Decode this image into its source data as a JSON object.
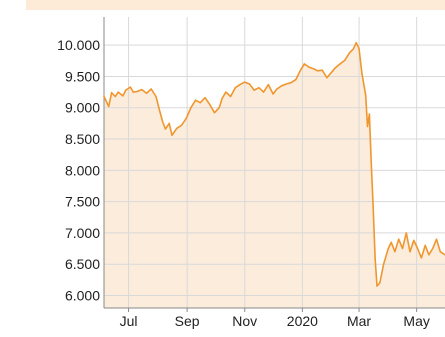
{
  "chart_data": {
    "type": "area",
    "title": "",
    "xlabel": "",
    "ylabel": "",
    "ylim": [
      5800,
      10450
    ],
    "grid": true,
    "colors": {
      "line": "#f0962e",
      "fill": "#fcecdc",
      "grid": "#d9d9d9",
      "axis": "#8a8a8a",
      "top_strip": "#fdebd8"
    },
    "y_ticks": [
      {
        "value": 6000,
        "label": "6.000"
      },
      {
        "value": 6500,
        "label": "6.500"
      },
      {
        "value": 7000,
        "label": "7.000"
      },
      {
        "value": 7500,
        "label": "7.500"
      },
      {
        "value": 8000,
        "label": "8.000"
      },
      {
        "value": 8500,
        "label": "8.500"
      },
      {
        "value": 9000,
        "label": "9.000"
      },
      {
        "value": 9500,
        "label": "9.500"
      },
      {
        "value": 10000,
        "label": "10.000"
      }
    ],
    "x_range": [
      "2019-06-05",
      "2020-05-31"
    ],
    "x_ticks": [
      {
        "date": "2019-07-01",
        "label": "Jul"
      },
      {
        "date": "2019-09-01",
        "label": "Sep"
      },
      {
        "date": "2019-11-01",
        "label": "Nov"
      },
      {
        "date": "2020-01-01",
        "label": "2020"
      },
      {
        "date": "2020-03-01",
        "label": "Mar"
      },
      {
        "date": "2020-05-01",
        "label": "May"
      }
    ],
    "series": [
      {
        "x": [
          "2019-06-05",
          "2019-06-10",
          "2019-06-13",
          "2019-06-17",
          "2019-06-20",
          "2019-06-25",
          "2019-06-28",
          "2019-07-03",
          "2019-07-06",
          "2019-07-10",
          "2019-07-15",
          "2019-07-20",
          "2019-07-25",
          "2019-07-30",
          "2019-08-03",
          "2019-08-06",
          "2019-08-09",
          "2019-08-13",
          "2019-08-16",
          "2019-08-21",
          "2019-08-26",
          "2019-08-31",
          "2019-09-05",
          "2019-09-10",
          "2019-09-15",
          "2019-09-20",
          "2019-09-25",
          "2019-09-30",
          "2019-10-05",
          "2019-10-08",
          "2019-10-12",
          "2019-10-17",
          "2019-10-22",
          "2019-10-27",
          "2019-11-01",
          "2019-11-06",
          "2019-11-11",
          "2019-11-16",
          "2019-11-21",
          "2019-11-26",
          "2019-12-01",
          "2019-12-05",
          "2019-12-10",
          "2019-12-15",
          "2019-12-20",
          "2019-12-25",
          "2019-12-30",
          "2020-01-03",
          "2020-01-08",
          "2020-01-13",
          "2020-01-17",
          "2020-01-22",
          "2020-01-27",
          "2020-01-31",
          "2020-02-05",
          "2020-02-10",
          "2020-02-15",
          "2020-02-20",
          "2020-02-24",
          "2020-02-27",
          "2020-03-01",
          "2020-03-04",
          "2020-03-08",
          "2020-03-10",
          "2020-03-12",
          "2020-03-14",
          "2020-03-16",
          "2020-03-18",
          "2020-03-20",
          "2020-03-23",
          "2020-03-27",
          "2020-04-01",
          "2020-04-04",
          "2020-04-08",
          "2020-04-12",
          "2020-04-16",
          "2020-04-20",
          "2020-04-24",
          "2020-04-28",
          "2020-05-02",
          "2020-05-06",
          "2020-05-10",
          "2020-05-14",
          "2020-05-18",
          "2020-05-22",
          "2020-05-26",
          "2020-05-31"
        ],
        "values": [
          9180,
          9020,
          9240,
          9180,
          9250,
          9190,
          9280,
          9330,
          9250,
          9260,
          9290,
          9230,
          9300,
          9180,
          8950,
          8780,
          8660,
          8750,
          8560,
          8670,
          8720,
          8830,
          9000,
          9120,
          9080,
          9160,
          9050,
          8920,
          9000,
          9150,
          9250,
          9180,
          9320,
          9370,
          9410,
          9380,
          9280,
          9320,
          9250,
          9370,
          9220,
          9300,
          9350,
          9380,
          9400,
          9450,
          9600,
          9700,
          9650,
          9620,
          9590,
          9600,
          9480,
          9550,
          9640,
          9700,
          9760,
          9880,
          9940,
          10040,
          9950,
          9550,
          9200,
          8700,
          8900,
          8100,
          7400,
          6600,
          6150,
          6200,
          6500,
          6750,
          6850,
          6700,
          6900,
          6750,
          7000,
          6700,
          6880,
          6750,
          6600,
          6800,
          6650,
          6750,
          6900,
          6700,
          6650
        ]
      }
    ]
  }
}
